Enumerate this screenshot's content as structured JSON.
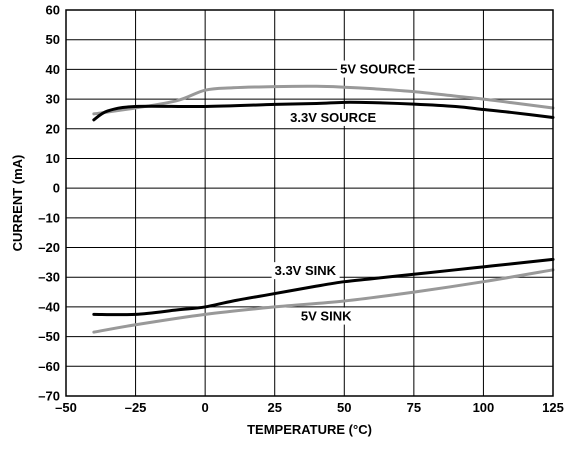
{
  "chart_data": {
    "type": "line",
    "title": "",
    "xlabel": "TEMPERATURE (°C)",
    "ylabel": "CURRENT (mA)",
    "xlim": [
      -50,
      125
    ],
    "ylim": [
      -70,
      60
    ],
    "grid": true,
    "xticks": [
      -50,
      -25,
      0,
      25,
      50,
      75,
      100,
      125
    ],
    "yticks": [
      60,
      50,
      40,
      30,
      20,
      10,
      0,
      -10,
      -20,
      -30,
      -40,
      -50,
      -60,
      -70
    ],
    "xtick_labels": [
      "–50",
      "–25",
      "0",
      "25",
      "50",
      "75",
      "100",
      "125"
    ],
    "ytick_labels": [
      "60",
      "50",
      "40",
      "30",
      "20",
      "10",
      "0",
      "–10",
      "–20",
      "–30",
      "–40",
      "–50",
      "–60",
      "–70"
    ],
    "series": [
      {
        "name": "5V SOURCE",
        "color": "#999999",
        "x": [
          -40,
          -25,
          -10,
          0,
          10,
          25,
          40,
          50,
          60,
          75,
          90,
          100,
          110,
          125
        ],
        "y": [
          25,
          27,
          29.5,
          33,
          33.8,
          34.2,
          34.3,
          34,
          33.5,
          32.5,
          31,
          30,
          28.8,
          27
        ]
      },
      {
        "name": "3.3V SOURCE",
        "color": "#000000",
        "x": [
          -40,
          -35,
          -25,
          0,
          25,
          40,
          50,
          60,
          75,
          90,
          100,
          110,
          125
        ],
        "y": [
          23,
          26,
          27.5,
          27.5,
          28.2,
          28.5,
          28.9,
          28.8,
          28.3,
          27.5,
          26.5,
          25.5,
          23.8
        ]
      },
      {
        "name": "3.3V SINK",
        "color": "#000000",
        "x": [
          -40,
          -25,
          -10,
          0,
          10,
          25,
          40,
          50,
          60,
          75,
          90,
          100,
          110,
          125
        ],
        "y": [
          -42.5,
          -42.5,
          -41,
          -40,
          -38,
          -35.5,
          -33,
          -31.5,
          -30.5,
          -29,
          -27.5,
          -26.5,
          -25.5,
          -24
        ]
      },
      {
        "name": "5V SINK",
        "color": "#999999",
        "x": [
          -40,
          -25,
          0,
          25,
          50,
          75,
          100,
          125
        ],
        "y": [
          -48.5,
          -46,
          -42.5,
          -40,
          -38,
          -35,
          -31.5,
          -27.5
        ]
      }
    ],
    "annotations": [
      {
        "text": "5V SOURCE",
        "x": 62,
        "y": 38.6
      },
      {
        "text": "3.3V SOURCE",
        "x": 46,
        "y": 22.3
      },
      {
        "text": "3.3V SINK",
        "x": 36,
        "y": -29.3
      },
      {
        "text": "5V SINK",
        "x": 43.5,
        "y": -44.6
      }
    ]
  }
}
